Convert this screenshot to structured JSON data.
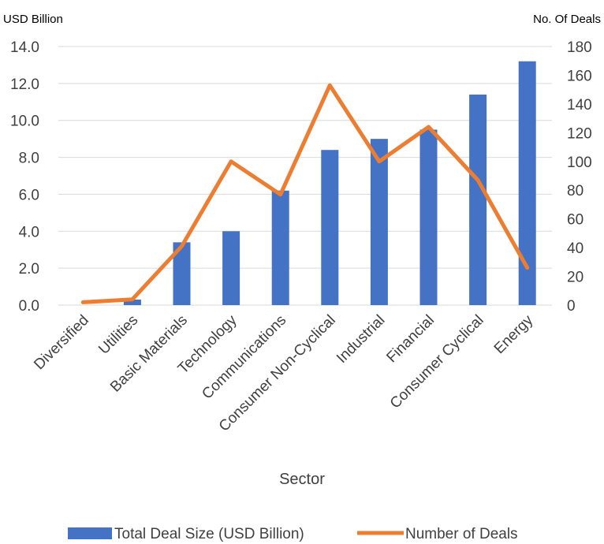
{
  "chart_data": {
    "type": "bar",
    "categories": [
      "Diversified",
      "Utilities",
      "Basic Materials",
      "Technology",
      "Communications",
      "Consumer Non-Cyclical",
      "Industrial",
      "Financial",
      "Consumer Cyclical",
      "Energy"
    ],
    "series": [
      {
        "name": "Total Deal Size (USD Billion)",
        "type": "bar",
        "axis": "left",
        "color": "#4472C4",
        "values": [
          0.0,
          0.3,
          3.4,
          4.0,
          6.2,
          8.4,
          9.0,
          9.5,
          11.4,
          13.2
        ]
      },
      {
        "name": "Number of Deals",
        "type": "line",
        "axis": "right",
        "color": "#ED7D31",
        "values": [
          2,
          4,
          41,
          100,
          77,
          153,
          100,
          124,
          87,
          26
        ]
      }
    ],
    "ylabel_left": "USD Billion",
    "ylabel_right": "No. Of Deals",
    "xlabel": "Sector",
    "ylim_left": [
      0,
      14
    ],
    "yticks_left": [
      "0.0",
      "2.0",
      "4.0",
      "6.0",
      "8.0",
      "10.0",
      "12.0",
      "14.0"
    ],
    "ylim_right": [
      0,
      180
    ],
    "yticks_right": [
      "0",
      "20",
      "40",
      "60",
      "80",
      "100",
      "120",
      "140",
      "160",
      "180"
    ],
    "grid": true,
    "legend_position": "bottom",
    "gridline_color": "#D9D9D9"
  }
}
